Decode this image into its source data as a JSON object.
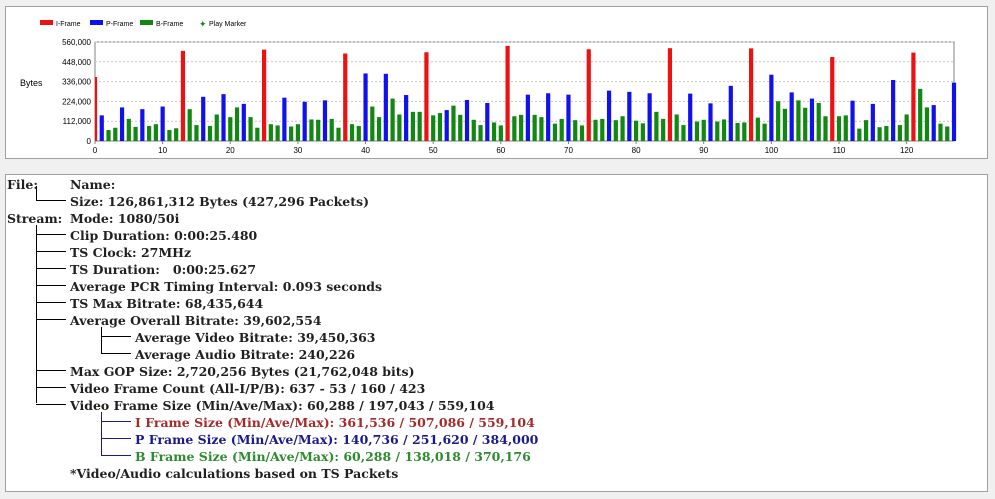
{
  "colors": {
    "i_frame": "#ee1111",
    "p_frame": "#1111ee",
    "b_frame": "#118811",
    "play_marker": "#118811",
    "i_text": "#a52a2a",
    "p_text": "#1a1a8c",
    "b_text": "#2e8b2e"
  },
  "chart_data": {
    "type": "bar",
    "title": "",
    "ylabel": "Bytes",
    "xlabel": "",
    "ylim": [
      0,
      560000
    ],
    "xlim": [
      0,
      127
    ],
    "y_ticks": [
      "560,000",
      "448,000",
      "336,000",
      "224,000",
      "112,000",
      "0"
    ],
    "y_tick_values": [
      560000,
      448000,
      336000,
      224000,
      112000,
      0
    ],
    "x_ticks": [
      "0",
      "10",
      "20",
      "30",
      "40",
      "50",
      "60",
      "70",
      "80",
      "90",
      "100",
      "110",
      "120"
    ],
    "x_tick_values": [
      0,
      10,
      20,
      30,
      40,
      50,
      60,
      70,
      80,
      90,
      100,
      110,
      120
    ],
    "grid": true,
    "legend_position": "top-left",
    "legend": [
      "I-Frame",
      "P-Frame",
      "B-Frame",
      "Play Marker"
    ],
    "series": [
      {
        "name": "I-Frame",
        "frame_type": "I",
        "x": [
          0,
          13,
          25,
          37,
          49,
          61,
          73,
          85,
          97,
          109,
          121
        ],
        "values": [
          362000,
          510000,
          517000,
          495000,
          502000,
          538000,
          519000,
          525000,
          524000,
          475000,
          500000
        ]
      },
      {
        "name": "P-Frame",
        "frame_type": "P",
        "x": [
          1,
          4,
          7,
          10,
          16,
          19,
          22,
          28,
          31,
          34,
          40,
          43,
          46,
          52,
          55,
          58,
          64,
          67,
          70,
          76,
          79,
          82,
          88,
          91,
          94,
          100,
          103,
          106,
          112,
          115,
          118,
          124,
          127
        ],
        "values": [
          145000,
          190000,
          180000,
          195000,
          250000,
          265000,
          210000,
          245000,
          222000,
          230000,
          382000,
          380000,
          260000,
          175000,
          232000,
          215000,
          262000,
          270000,
          262000,
          285000,
          278000,
          270000,
          268000,
          213000,
          312000,
          375000,
          275000,
          240000,
          228000,
          210000,
          345000,
          203000,
          330000
        ]
      },
      {
        "name": "B-Frame",
        "frame_type": "B",
        "x": [
          2,
          3,
          5,
          6,
          8,
          9,
          11,
          12,
          14,
          15,
          17,
          18,
          20,
          21,
          23,
          24,
          26,
          27,
          29,
          30,
          32,
          33,
          35,
          36,
          38,
          39,
          41,
          42,
          44,
          45,
          47,
          48,
          50,
          51,
          53,
          54,
          56,
          57,
          59,
          60,
          62,
          63,
          65,
          66,
          68,
          69,
          71,
          72,
          74,
          75,
          77,
          78,
          80,
          81,
          83,
          84,
          86,
          87,
          89,
          90,
          92,
          93,
          95,
          96,
          98,
          99,
          101,
          102,
          104,
          105,
          107,
          108,
          110,
          111,
          113,
          114,
          116,
          117,
          119,
          120,
          122,
          123,
          125,
          126
        ],
        "values": [
          62000,
          75000,
          125000,
          80000,
          85000,
          95000,
          62000,
          72000,
          180000,
          90000,
          85000,
          150000,
          135000,
          190000,
          135000,
          75000,
          95000,
          88000,
          82000,
          95000,
          122000,
          120000,
          125000,
          75000,
          95000,
          85000,
          195000,
          135000,
          240000,
          150000,
          165000,
          165000,
          145000,
          158000,
          200000,
          148000,
          120000,
          90000,
          105000,
          88000,
          140000,
          148000,
          148000,
          135000,
          98000,
          125000,
          118000,
          88000,
          120000,
          125000,
          118000,
          140000,
          115000,
          100000,
          165000,
          125000,
          150000,
          90000,
          110000,
          120000,
          110000,
          122000,
          102000,
          105000,
          132000,
          98000,
          225000,
          182000,
          230000,
          188000,
          215000,
          140000,
          140000,
          145000,
          70000,
          118000,
          78000,
          85000,
          90000,
          150000,
          295000,
          190000,
          98000,
          82000
        ]
      }
    ]
  },
  "tree": {
    "file_key": "File:",
    "name_label": "Name:",
    "size_line": "Size: 126,861,312 Bytes (427,296 Packets)",
    "stream_key": "Stream:",
    "mode_line": "Mode: 1080/50i",
    "clip_duration": "Clip Duration: 0:00:25.480",
    "ts_clock": "TS Clock: 27MHz",
    "ts_duration": "TS Duration:   0:00:25.627",
    "pcr_interval": "Average PCR Timing Interval: 0.093 seconds",
    "ts_max_bitrate": "TS Max Bitrate: 68,435,644",
    "overall_bitrate": "Average Overall Bitrate: 39,602,554",
    "video_bitrate": "Average Video Bitrate: 39,450,363",
    "audio_bitrate": "Average Audio Bitrate: 240,226",
    "max_gop": "Max GOP Size: 2,720,256 Bytes (21,762,048 bits)",
    "frame_count": "Video Frame Count (All-I/P/B): 637 - 53 / 160 / 423",
    "frame_size": "Video Frame Size (Min/Ave/Max): 60,288 / 197,043 / 559,104",
    "i_frame_size": "I Frame Size (Min/Ave/Max): 361,536 / 507,086 / 559,104",
    "p_frame_size": "P Frame Size (Min/Ave/Max): 140,736 / 251,620 / 384,000",
    "b_frame_size": "B Frame Size (Min/Ave/Max): 60,288 / 138,018 / 370,176",
    "footnote": "*Video/Audio calculations based on TS Packets"
  }
}
